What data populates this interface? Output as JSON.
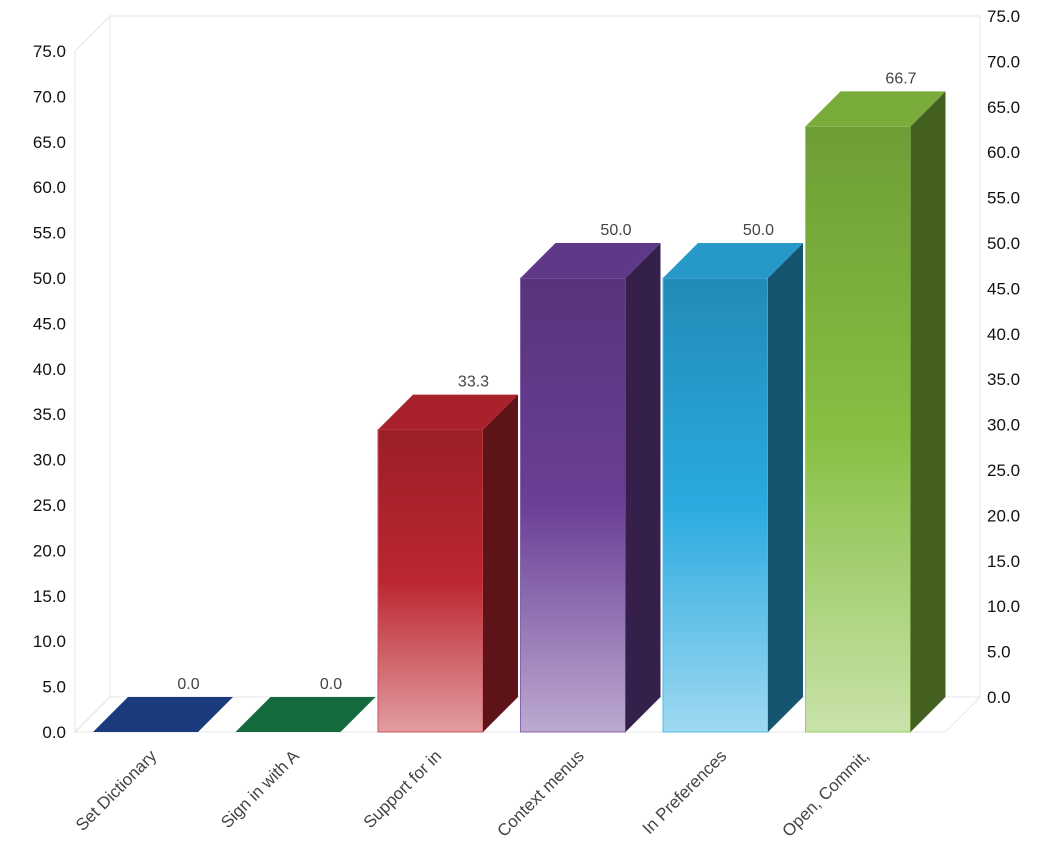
{
  "chart_data": {
    "type": "bar",
    "style": "3d",
    "categories": [
      "Set Dictionary",
      "Sign in with A",
      "Support for in",
      "Context menus",
      "In Preferences",
      "Open, Commit,"
    ],
    "values": [
      0.0,
      0.0,
      33.3,
      50.0,
      50.0,
      66.7
    ],
    "value_labels": [
      "0.0",
      "0.0",
      "33.3",
      "50.0",
      "50.0",
      "66.7"
    ],
    "colors": [
      "#1b3a7e",
      "#146c3e",
      "#bc2630",
      "#6a3f96",
      "#2aaadf",
      "#86bf42"
    ],
    "ylim": [
      0,
      75
    ],
    "y_ticks": [
      "0.0",
      "5.0",
      "10.0",
      "15.0",
      "20.0",
      "25.0",
      "30.0",
      "35.0",
      "40.0",
      "45.0",
      "50.0",
      "55.0",
      "60.0",
      "65.0",
      "70.0",
      "75.0"
    ],
    "secondary_axis": true,
    "grid": false,
    "legend": "none",
    "title": "",
    "xlabel": "",
    "ylabel": ""
  }
}
